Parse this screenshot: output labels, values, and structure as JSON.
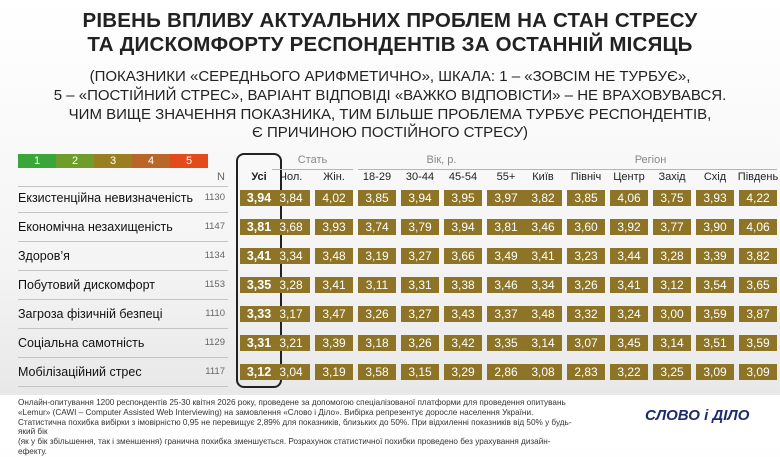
{
  "title": {
    "line1": "РІВЕНЬ ВПЛИВУ АКТУАЛЬНИХ ПРОБЛЕМ НА СТАН СТРЕСУ",
    "line2": "ТА ДИСКОМФОРТУ РЕСПОНДЕНТІВ ЗА ОСТАННІЙ МІСЯЦЬ"
  },
  "subtitle": {
    "line1": "(ПОКАЗНИКИ «СЕРЕДНЬОГО АРИФМЕТИЧНО», ШКАЛА: 1 – «ЗОВСІМ НЕ ТУРБУЄ»,",
    "line2": "5 – «ПОСТІЙНИЙ СТРЕС», ВАРІАНТ ВІДПОВІДІ «ВАЖКО ВІДПОВІСТИ» – НЕ ВРАХОВУВАВСЯ.",
    "line3": "ЧИМ ВИЩЕ ЗНАЧЕННЯ ПОКАЗНИКА, ТИМ БІЛЬШЕ ПРОБЛЕМА ТУРБУЄ РЕСПОНДЕНТІВ,",
    "line4": "Є ПРИЧИНОЮ ПОСТІЙНОГО СТРЕСУ)"
  },
  "scale": {
    "labels": [
      "1",
      "2",
      "3",
      "4",
      "5"
    ],
    "colors": [
      "#3aa63a",
      "#6f9d2c",
      "#9a7f22",
      "#b9662a",
      "#e34a1e"
    ]
  },
  "colors": {
    "cell": "#8d7426",
    "total_border": "#222222"
  },
  "chart_data": {
    "type": "table",
    "n_header": "N",
    "total_header": "Усі",
    "groups": [
      {
        "name": "Стать",
        "columns": [
          "Чол.",
          "Жін."
        ]
      },
      {
        "name": "Вік, р.",
        "columns": [
          "18-29",
          "30-44",
          "45-54",
          "55+"
        ]
      },
      {
        "name": "Регіон",
        "columns": [
          "Київ",
          "Північ",
          "Центр",
          "Захід",
          "Схід",
          "Південь"
        ]
      }
    ],
    "rows": [
      {
        "label": "Екзистенційна невизначеність",
        "n": "1130",
        "total": "3,94",
        "values": [
          "3,84",
          "4,02",
          "3,85",
          "3,94",
          "3,95",
          "3,97",
          "3,82",
          "3,85",
          "4,06",
          "3,75",
          "3,93",
          "4,22"
        ]
      },
      {
        "label": "Економічна незахищеність",
        "n": "1147",
        "total": "3,81",
        "values": [
          "3,68",
          "3,93",
          "3,74",
          "3,79",
          "3,94",
          "3,81",
          "3,46",
          "3,60",
          "3,92",
          "3,77",
          "3,90",
          "4,06"
        ]
      },
      {
        "label": "Здоров’я",
        "n": "1134",
        "total": "3,41",
        "values": [
          "3,34",
          "3,48",
          "3,19",
          "3,27",
          "3,66",
          "3,49",
          "3,41",
          "3,23",
          "3,44",
          "3,28",
          "3,39",
          "3,82"
        ]
      },
      {
        "label": "Побутовий дискомфорт",
        "n": "1153",
        "total": "3,35",
        "values": [
          "3,28",
          "3,41",
          "3,11",
          "3,31",
          "3,38",
          "3,46",
          "3,34",
          "3,26",
          "3,41",
          "3,12",
          "3,54",
          "3,65"
        ]
      },
      {
        "label": "Загроза фізичній безпеці",
        "n": "1110",
        "total": "3,33",
        "values": [
          "3,17",
          "3,47",
          "3,26",
          "3,27",
          "3,43",
          "3,37",
          "3,48",
          "3,32",
          "3,24",
          "3,00",
          "3,59",
          "3,87"
        ]
      },
      {
        "label": "Соціальна самотність",
        "n": "1129",
        "total": "3,31",
        "values": [
          "3,21",
          "3,39",
          "3,18",
          "3,26",
          "3,42",
          "3,35",
          "3,14",
          "3,07",
          "3,45",
          "3,14",
          "3,51",
          "3,59"
        ]
      },
      {
        "label": "Мобілізаційний стрес",
        "n": "1117",
        "total": "3,12",
        "values": [
          "3,04",
          "3,19",
          "3,58",
          "3,15",
          "3,29",
          "2,86",
          "3,08",
          "2,83",
          "3,22",
          "3,25",
          "3,09",
          "3,09"
        ]
      }
    ]
  },
  "footer": {
    "line1": "Онлайн-опитування 1200 респондентів 25-30 квітня 2026 року, проведене за допомогою спеціалізованої платформи для проведення опитувань",
    "line2": "«Lemur» (CAWI – Computer Assisted Web Interviewing) на замовлення «Слово і Діло». Вибірка репрезентує доросле населення України.",
    "line3": "Статистична похибка вибірки з імовірністю 0,95 не перевищує 2,89% для показників, близьких до 50%. При відхиленні показників від 50% у будь-який бік",
    "line4": "(як у бік збільшення, так і зменшення) гранична похибка зменшується. Розрахунок статистичної похибки проведено без урахування дизайн-ефекту."
  },
  "logo": {
    "text": "СЛОВО і ДІЛО"
  }
}
